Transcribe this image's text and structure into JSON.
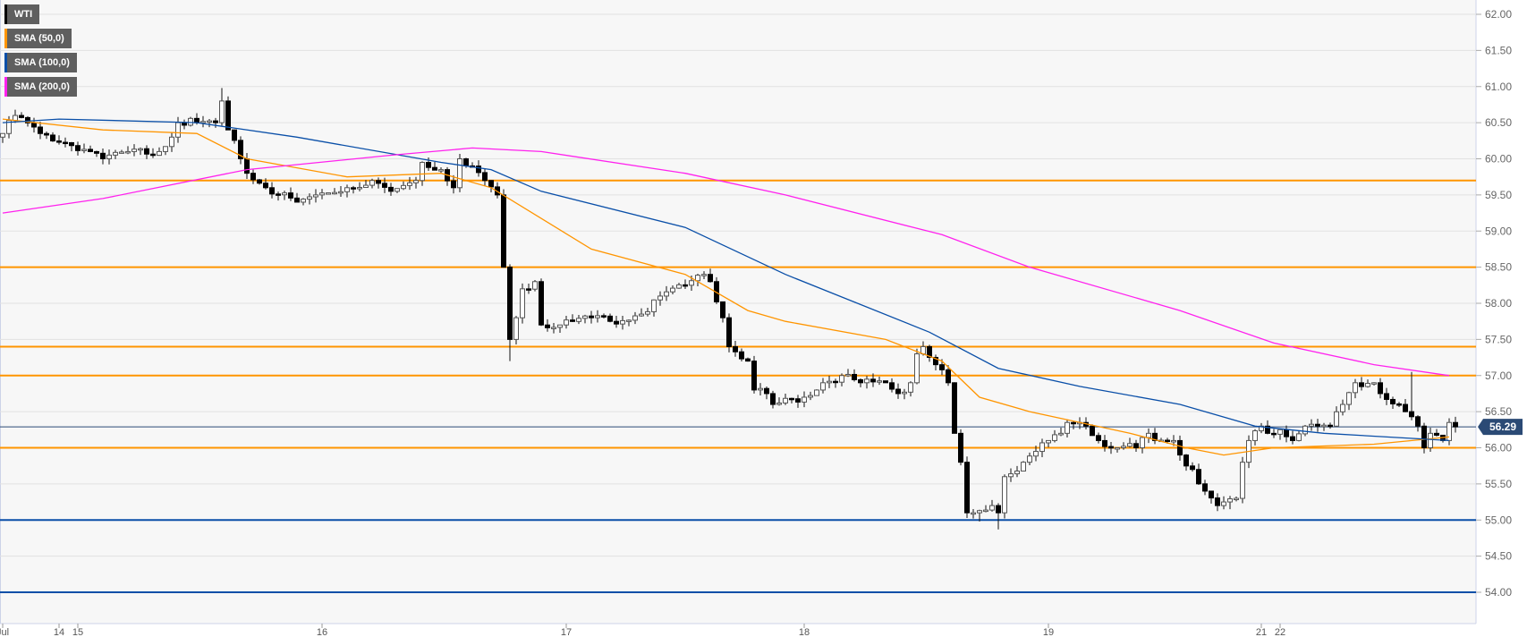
{
  "legend": [
    {
      "label": "WTI",
      "color": "#000000"
    },
    {
      "label": "SMA (50,0)",
      "color": "#ff9500"
    },
    {
      "label": "SMA (100,0)",
      "color": "#0a4fa8"
    },
    {
      "label": "SMA (200,0)",
      "color": "#ff22ee"
    }
  ],
  "chart_data": {
    "type": "candlestick",
    "title": "WTI",
    "ylim": [
      53.8,
      62.2
    ],
    "y_ticks": [
      "62.00",
      "61.50",
      "61.00",
      "60.50",
      "60.00",
      "59.50",
      "59.00",
      "58.50",
      "58.00",
      "57.50",
      "57.00",
      "56.50",
      "56.00",
      "55.50",
      "55.00",
      "54.50",
      "54.00"
    ],
    "x_ticks": [
      {
        "label": "Jul",
        "index": 0
      },
      {
        "label": "14",
        "index": 9
      },
      {
        "label": "15",
        "index": 12
      },
      {
        "label": "16",
        "index": 51
      },
      {
        "label": "17",
        "index": 90
      },
      {
        "label": "18",
        "index": 128
      },
      {
        "label": "19",
        "index": 167
      },
      {
        "label": "21",
        "index": 201
      },
      {
        "label": "22",
        "index": 204
      }
    ],
    "candle_count": 233,
    "price_path": [
      [
        0,
        60.35
      ],
      [
        2,
        60.6
      ],
      [
        6,
        60.35
      ],
      [
        14,
        60.1
      ],
      [
        16,
        60.0
      ],
      [
        20,
        60.1
      ],
      [
        25,
        60.1
      ],
      [
        27,
        60.3
      ],
      [
        28,
        60.5
      ],
      [
        31,
        60.5
      ],
      [
        34,
        60.5
      ],
      [
        35,
        60.8
      ],
      [
        36,
        60.4
      ],
      [
        38,
        60.0
      ],
      [
        39,
        59.8
      ],
      [
        42,
        59.6
      ],
      [
        47,
        59.4
      ],
      [
        50,
        59.5
      ],
      [
        55,
        59.6
      ],
      [
        59,
        59.7
      ],
      [
        62,
        59.55
      ],
      [
        66,
        59.7
      ],
      [
        67,
        59.95
      ],
      [
        70,
        59.85
      ],
      [
        72,
        59.6
      ],
      [
        73,
        60.0
      ],
      [
        75,
        59.9
      ],
      [
        77,
        59.7
      ],
      [
        79,
        59.5
      ],
      [
        80,
        58.5
      ],
      [
        81,
        57.5
      ],
      [
        82,
        57.8
      ],
      [
        83,
        58.2
      ],
      [
        85,
        58.3
      ],
      [
        86,
        57.7
      ],
      [
        89,
        57.7
      ],
      [
        94,
        57.8
      ],
      [
        97,
        57.75
      ],
      [
        102,
        57.85
      ],
      [
        105,
        58.1
      ],
      [
        109,
        58.25
      ],
      [
        112,
        58.4
      ],
      [
        113,
        58.3
      ],
      [
        115,
        57.8
      ],
      [
        116,
        57.4
      ],
      [
        119,
        57.2
      ],
      [
        120,
        56.8
      ],
      [
        122,
        56.75
      ],
      [
        123,
        56.6
      ],
      [
        128,
        56.7
      ],
      [
        131,
        56.9
      ],
      [
        134,
        57.0
      ],
      [
        137,
        56.9
      ],
      [
        141,
        56.9
      ],
      [
        143,
        56.75
      ],
      [
        145,
        56.9
      ],
      [
        146,
        57.3
      ],
      [
        147,
        57.4
      ],
      [
        149,
        57.15
      ],
      [
        151,
        56.9
      ],
      [
        152,
        56.2
      ],
      [
        153,
        55.8
      ],
      [
        154,
        55.1
      ],
      [
        155,
        55.1
      ],
      [
        158,
        55.2
      ],
      [
        159,
        55.1
      ],
      [
        160,
        55.6
      ],
      [
        163,
        55.8
      ],
      [
        165,
        55.95
      ],
      [
        167,
        56.1
      ],
      [
        169,
        56.2
      ],
      [
        170,
        56.35
      ],
      [
        172,
        56.35
      ],
      [
        173,
        56.3
      ],
      [
        175,
        56.1
      ],
      [
        178,
        56.0
      ],
      [
        181,
        56.0
      ],
      [
        183,
        56.2
      ],
      [
        184,
        56.1
      ],
      [
        187,
        56.1
      ],
      [
        188,
        55.9
      ],
      [
        190,
        55.7
      ],
      [
        192,
        55.4
      ],
      [
        194,
        55.2
      ],
      [
        195,
        55.25
      ],
      [
        197,
        55.3
      ],
      [
        198,
        55.8
      ],
      [
        199,
        56.1
      ],
      [
        201,
        56.3
      ],
      [
        202,
        56.2
      ],
      [
        204,
        56.25
      ],
      [
        206,
        56.1
      ],
      [
        208,
        56.3
      ],
      [
        210,
        56.3
      ],
      [
        212,
        56.3
      ],
      [
        214,
        56.6
      ],
      [
        216,
        56.9
      ],
      [
        219,
        56.9
      ],
      [
        220,
        56.75
      ],
      [
        223,
        56.6
      ],
      [
        224,
        56.5
      ],
      [
        226,
        56.3
      ],
      [
        227,
        56.0
      ],
      [
        228,
        56.2
      ],
      [
        230,
        56.1
      ],
      [
        231,
        56.35
      ],
      [
        232,
        56.29
      ]
    ],
    "spikes": [
      [
        35,
        "high",
        60.98
      ],
      [
        81,
        "low",
        57.2
      ],
      [
        156,
        "low",
        54.98
      ],
      [
        159,
        "low",
        54.87
      ],
      [
        196,
        "low",
        55.15
      ],
      [
        225,
        "high",
        57.05
      ]
    ],
    "series": [
      {
        "name": "SMA (50,0)",
        "color": "#ff9500",
        "points": [
          [
            0,
            60.55
          ],
          [
            16,
            60.4
          ],
          [
            31,
            60.35
          ],
          [
            39,
            60.0
          ],
          [
            55,
            59.75
          ],
          [
            70,
            59.8
          ],
          [
            78,
            59.6
          ],
          [
            94,
            58.75
          ],
          [
            109,
            58.4
          ],
          [
            119,
            57.9
          ],
          [
            125,
            57.75
          ],
          [
            141,
            57.5
          ],
          [
            150,
            57.2
          ],
          [
            156,
            56.7
          ],
          [
            164,
            56.5
          ],
          [
            180,
            56.2
          ],
          [
            189,
            56.0
          ],
          [
            195,
            55.9
          ],
          [
            203,
            56.0
          ],
          [
            219,
            56.05
          ],
          [
            231,
            56.15
          ]
        ]
      },
      {
        "name": "SMA (100,0)",
        "color": "#0a4fa8",
        "points": [
          [
            0,
            60.5
          ],
          [
            9,
            60.55
          ],
          [
            31,
            60.5
          ],
          [
            47,
            60.3
          ],
          [
            70,
            59.95
          ],
          [
            78,
            59.85
          ],
          [
            86,
            59.55
          ],
          [
            109,
            59.05
          ],
          [
            125,
            58.4
          ],
          [
            148,
            57.6
          ],
          [
            159,
            57.1
          ],
          [
            172,
            56.85
          ],
          [
            188,
            56.6
          ],
          [
            200,
            56.3
          ],
          [
            211,
            56.2
          ],
          [
            231,
            56.1
          ]
        ]
      },
      {
        "name": "SMA (200,0)",
        "color": "#ff22ee",
        "points": [
          [
            0,
            59.25
          ],
          [
            16,
            59.45
          ],
          [
            39,
            59.85
          ],
          [
            62,
            60.05
          ],
          [
            75,
            60.15
          ],
          [
            86,
            60.1
          ],
          [
            109,
            59.8
          ],
          [
            125,
            59.5
          ],
          [
            150,
            58.95
          ],
          [
            164,
            58.5
          ],
          [
            188,
            57.9
          ],
          [
            203,
            57.45
          ],
          [
            219,
            57.15
          ],
          [
            231,
            57.0
          ]
        ]
      }
    ],
    "levels": [
      {
        "value": 59.7,
        "color": "#ff9500"
      },
      {
        "value": 58.5,
        "color": "#ff9500"
      },
      {
        "value": 57.4,
        "color": "#ff9500"
      },
      {
        "value": 57.0,
        "color": "#ff9500"
      },
      {
        "value": 56.0,
        "color": "#ff9500"
      },
      {
        "value": 55.0,
        "color": "#0a4fa8"
      },
      {
        "value": 54.0,
        "color": "#0a4fa8"
      }
    ],
    "current_price": {
      "value": 56.29,
      "label": "56.29",
      "color": "#2b4a75"
    }
  }
}
